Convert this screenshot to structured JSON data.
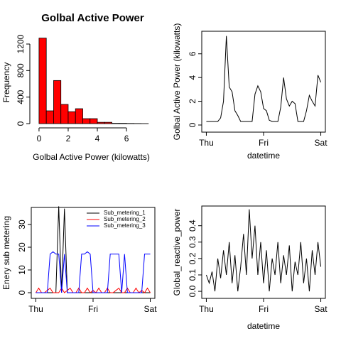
{
  "chart_data": [
    {
      "type": "histogram",
      "title": "Golbal Active Power",
      "x_label": "Golbal Active Power (kilowatts)",
      "y_label": "Frequency",
      "bins": [
        0,
        0.5,
        1,
        1.5,
        2,
        2.5,
        3,
        3.5,
        4,
        4.5,
        5,
        5.5,
        6,
        6.5,
        7,
        7.5
      ],
      "values": [
        1290,
        193,
        650,
        290,
        180,
        225,
        75,
        75,
        20,
        20,
        5,
        5,
        3,
        2,
        1
      ],
      "color": "#ff0000",
      "xlim": [
        -0.63,
        7.8
      ],
      "ylim": [
        -64,
        1307
      ],
      "xticks": [
        0,
        2,
        4,
        6
      ],
      "yticks": [
        0,
        400,
        800,
        1200
      ],
      "box": false
    },
    {
      "type": "line",
      "x_label": "datetime",
      "y_label": "Golbal Active Power (kilowatts)",
      "x": [
        0,
        0.05,
        0.1,
        0.15,
        0.2,
        0.25,
        0.3,
        0.35,
        0.4,
        0.45,
        0.5,
        0.55,
        0.6,
        0.65,
        0.7,
        0.75,
        0.8,
        0.85,
        0.9,
        0.95,
        1,
        1.05,
        1.1,
        1.15,
        1.2,
        1.25,
        1.3,
        1.35,
        1.4,
        1.45,
        1.5,
        1.55,
        1.6,
        1.65,
        1.7,
        1.75,
        1.8,
        1.85,
        1.9,
        1.95,
        2
      ],
      "values": [
        0.3,
        0.3,
        0.3,
        0.3,
        0.3,
        0.6,
        2.0,
        7.5,
        3.2,
        2.8,
        1.2,
        0.8,
        0.3,
        0.3,
        0.3,
        0.3,
        0.3,
        2.6,
        3.3,
        2.8,
        1.4,
        1.2,
        0.4,
        0.3,
        0.3,
        0.3,
        1.5,
        4.0,
        2.2,
        1.6,
        2.0,
        1.8,
        0.3,
        0.3,
        0.3,
        1.2,
        2.5,
        2.0,
        1.6,
        4.2,
        3.6
      ],
      "color": "#000000",
      "xlim": [
        -0.08,
        2.08
      ],
      "ylim": [
        -0.6,
        7.9
      ],
      "xticks": [
        {
          "value": 0,
          "label": "Thu"
        },
        {
          "value": 1,
          "label": "Fri"
        },
        {
          "value": 2,
          "label": "Sat"
        }
      ],
      "yticks": [
        0,
        2,
        4,
        6
      ],
      "box": true
    },
    {
      "type": "line",
      "y_label": "Enery sub metering",
      "legend": "topright",
      "x": [
        0,
        0.05,
        0.1,
        0.15,
        0.2,
        0.25,
        0.3,
        0.35,
        0.4,
        0.45,
        0.5,
        0.55,
        0.6,
        0.65,
        0.7,
        0.75,
        0.8,
        0.85,
        0.9,
        0.95,
        1,
        1.05,
        1.1,
        1.15,
        1.2,
        1.25,
        1.3,
        1.35,
        1.4,
        1.45,
        1.5,
        1.55,
        1.6,
        1.65,
        1.7,
        1.75,
        1.8,
        1.85,
        1.9,
        1.95,
        2
      ],
      "series": [
        {
          "name": "Sub_metering_1",
          "color": "#000000",
          "values": [
            0,
            0,
            0,
            0,
            0,
            0,
            0,
            0,
            38,
            0,
            37,
            0,
            0,
            0,
            0,
            0,
            0,
            0,
            0,
            0,
            0,
            0,
            0,
            0,
            0,
            0,
            0,
            0,
            0,
            0,
            0,
            0,
            0,
            0,
            0,
            0,
            0,
            0,
            0,
            0,
            0
          ]
        },
        {
          "name": "Sub_metering_2",
          "color": "#ff0000",
          "values": [
            0,
            2,
            0,
            0,
            1,
            2,
            0,
            0,
            0,
            2,
            0,
            1,
            2,
            0,
            0,
            2,
            0,
            0,
            2,
            0,
            1,
            0,
            2,
            0,
            0,
            2,
            0,
            0,
            1,
            2,
            0,
            0,
            2,
            0,
            0,
            2,
            0,
            1,
            0,
            2,
            0
          ]
        },
        {
          "name": "Sub_metering_3",
          "color": "#0000ff",
          "values": [
            0,
            0,
            0,
            0,
            0,
            17,
            18,
            17,
            17,
            0,
            17,
            0,
            0,
            0,
            0,
            0,
            17,
            17,
            18,
            17,
            0,
            0,
            0,
            0,
            0,
            0,
            17,
            17,
            17,
            17,
            0,
            17,
            0,
            0,
            0,
            0,
            0,
            0,
            17,
            17,
            17
          ]
        }
      ],
      "xlim": [
        -0.08,
        2.08
      ],
      "ylim": [
        -2.5,
        37.5
      ],
      "xticks": [
        {
          "value": 0,
          "label": "Thu"
        },
        {
          "value": 1,
          "label": "Fri"
        },
        {
          "value": 2,
          "label": "Sat"
        }
      ],
      "yticks": [
        0,
        10,
        20,
        30
      ],
      "box": true
    },
    {
      "type": "line",
      "x_label": "datetime",
      "y_label": "Global_reactive_power",
      "x": [
        0,
        0.05,
        0.1,
        0.15,
        0.2,
        0.25,
        0.3,
        0.35,
        0.4,
        0.45,
        0.5,
        0.55,
        0.6,
        0.65,
        0.7,
        0.75,
        0.8,
        0.85,
        0.9,
        0.95,
        1,
        1.05,
        1.1,
        1.15,
        1.2,
        1.25,
        1.3,
        1.35,
        1.4,
        1.45,
        1.5,
        1.55,
        1.6,
        1.65,
        1.7,
        1.75,
        1.8,
        1.85,
        1.9,
        1.95,
        2
      ],
      "values": [
        0.1,
        0.05,
        0.12,
        0,
        0.2,
        0.08,
        0.25,
        0.1,
        0.3,
        0.05,
        0.22,
        0,
        0.15,
        0.35,
        0.1,
        0.5,
        0.2,
        0.4,
        0.1,
        0.3,
        0.05,
        0.25,
        0,
        0.2,
        0.1,
        0.3,
        0.05,
        0.22,
        0.1,
        0.28,
        0,
        0.18,
        0.1,
        0.3,
        0.05,
        0.2,
        0,
        0.25,
        0.1,
        0.3,
        0.15
      ],
      "color": "#000000",
      "xlim": [
        -0.08,
        2.08
      ],
      "ylim": [
        -0.043,
        0.52
      ],
      "xticks": [
        {
          "value": 0,
          "label": "Thu"
        },
        {
          "value": 1,
          "label": "Fri"
        },
        {
          "value": 2,
          "label": "Sat"
        }
      ],
      "yticks": [
        {
          "value": 0,
          "label": "0.0"
        },
        0.1,
        0.2,
        0.3,
        0.4
      ],
      "box": true
    }
  ]
}
